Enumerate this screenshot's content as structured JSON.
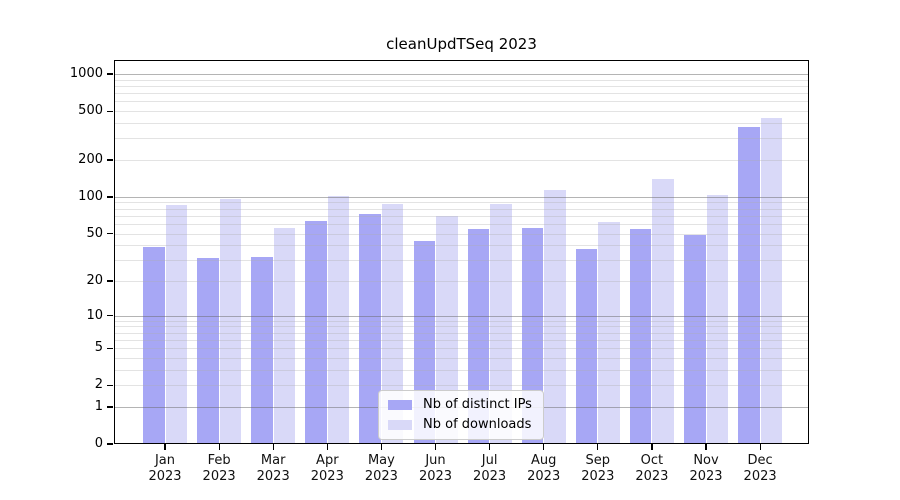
{
  "title": "cleanUpdTSeq 2023",
  "background_color": "#ffffff",
  "chart_data": {
    "type": "bar",
    "title": "cleanUpdTSeq 2023",
    "y_scale": "log1p",
    "ylim": [
      0,
      1300
    ],
    "yticks": [
      0,
      1,
      2,
      5,
      10,
      20,
      50,
      100,
      200,
      500,
      1000
    ],
    "grid_major": [
      1,
      10,
      100,
      1000
    ],
    "grid_minor": [
      2,
      3,
      4,
      5,
      6,
      7,
      8,
      9,
      20,
      30,
      40,
      50,
      60,
      70,
      80,
      90,
      200,
      300,
      400,
      500,
      600,
      700,
      800,
      900
    ],
    "months": [
      "Jan",
      "Feb",
      "Mar",
      "Apr",
      "May",
      "Jun",
      "Jul",
      "Aug",
      "Sep",
      "Oct",
      "Nov",
      "Dec"
    ],
    "year_label": "2023",
    "series": [
      {
        "name": "Nb of distinct IPs",
        "color": "#a7a7f5",
        "values": [
          39,
          31,
          32,
          64,
          72,
          43,
          54,
          55,
          37,
          54,
          49,
          370
        ]
      },
      {
        "name": "Nb of downloads",
        "color": "#d9d9f8",
        "values": [
          86,
          97,
          56,
          101,
          88,
          70,
          87,
          114,
          62,
          140,
          103,
          440
        ]
      }
    ],
    "legend": {
      "position": "bottom-center",
      "entries": [
        "Nb of distinct IPs",
        "Nb of downloads"
      ]
    },
    "axis_color": "#000000",
    "grid_major_color": "#ababab",
    "grid_minor_color": "#e6e6e6"
  }
}
